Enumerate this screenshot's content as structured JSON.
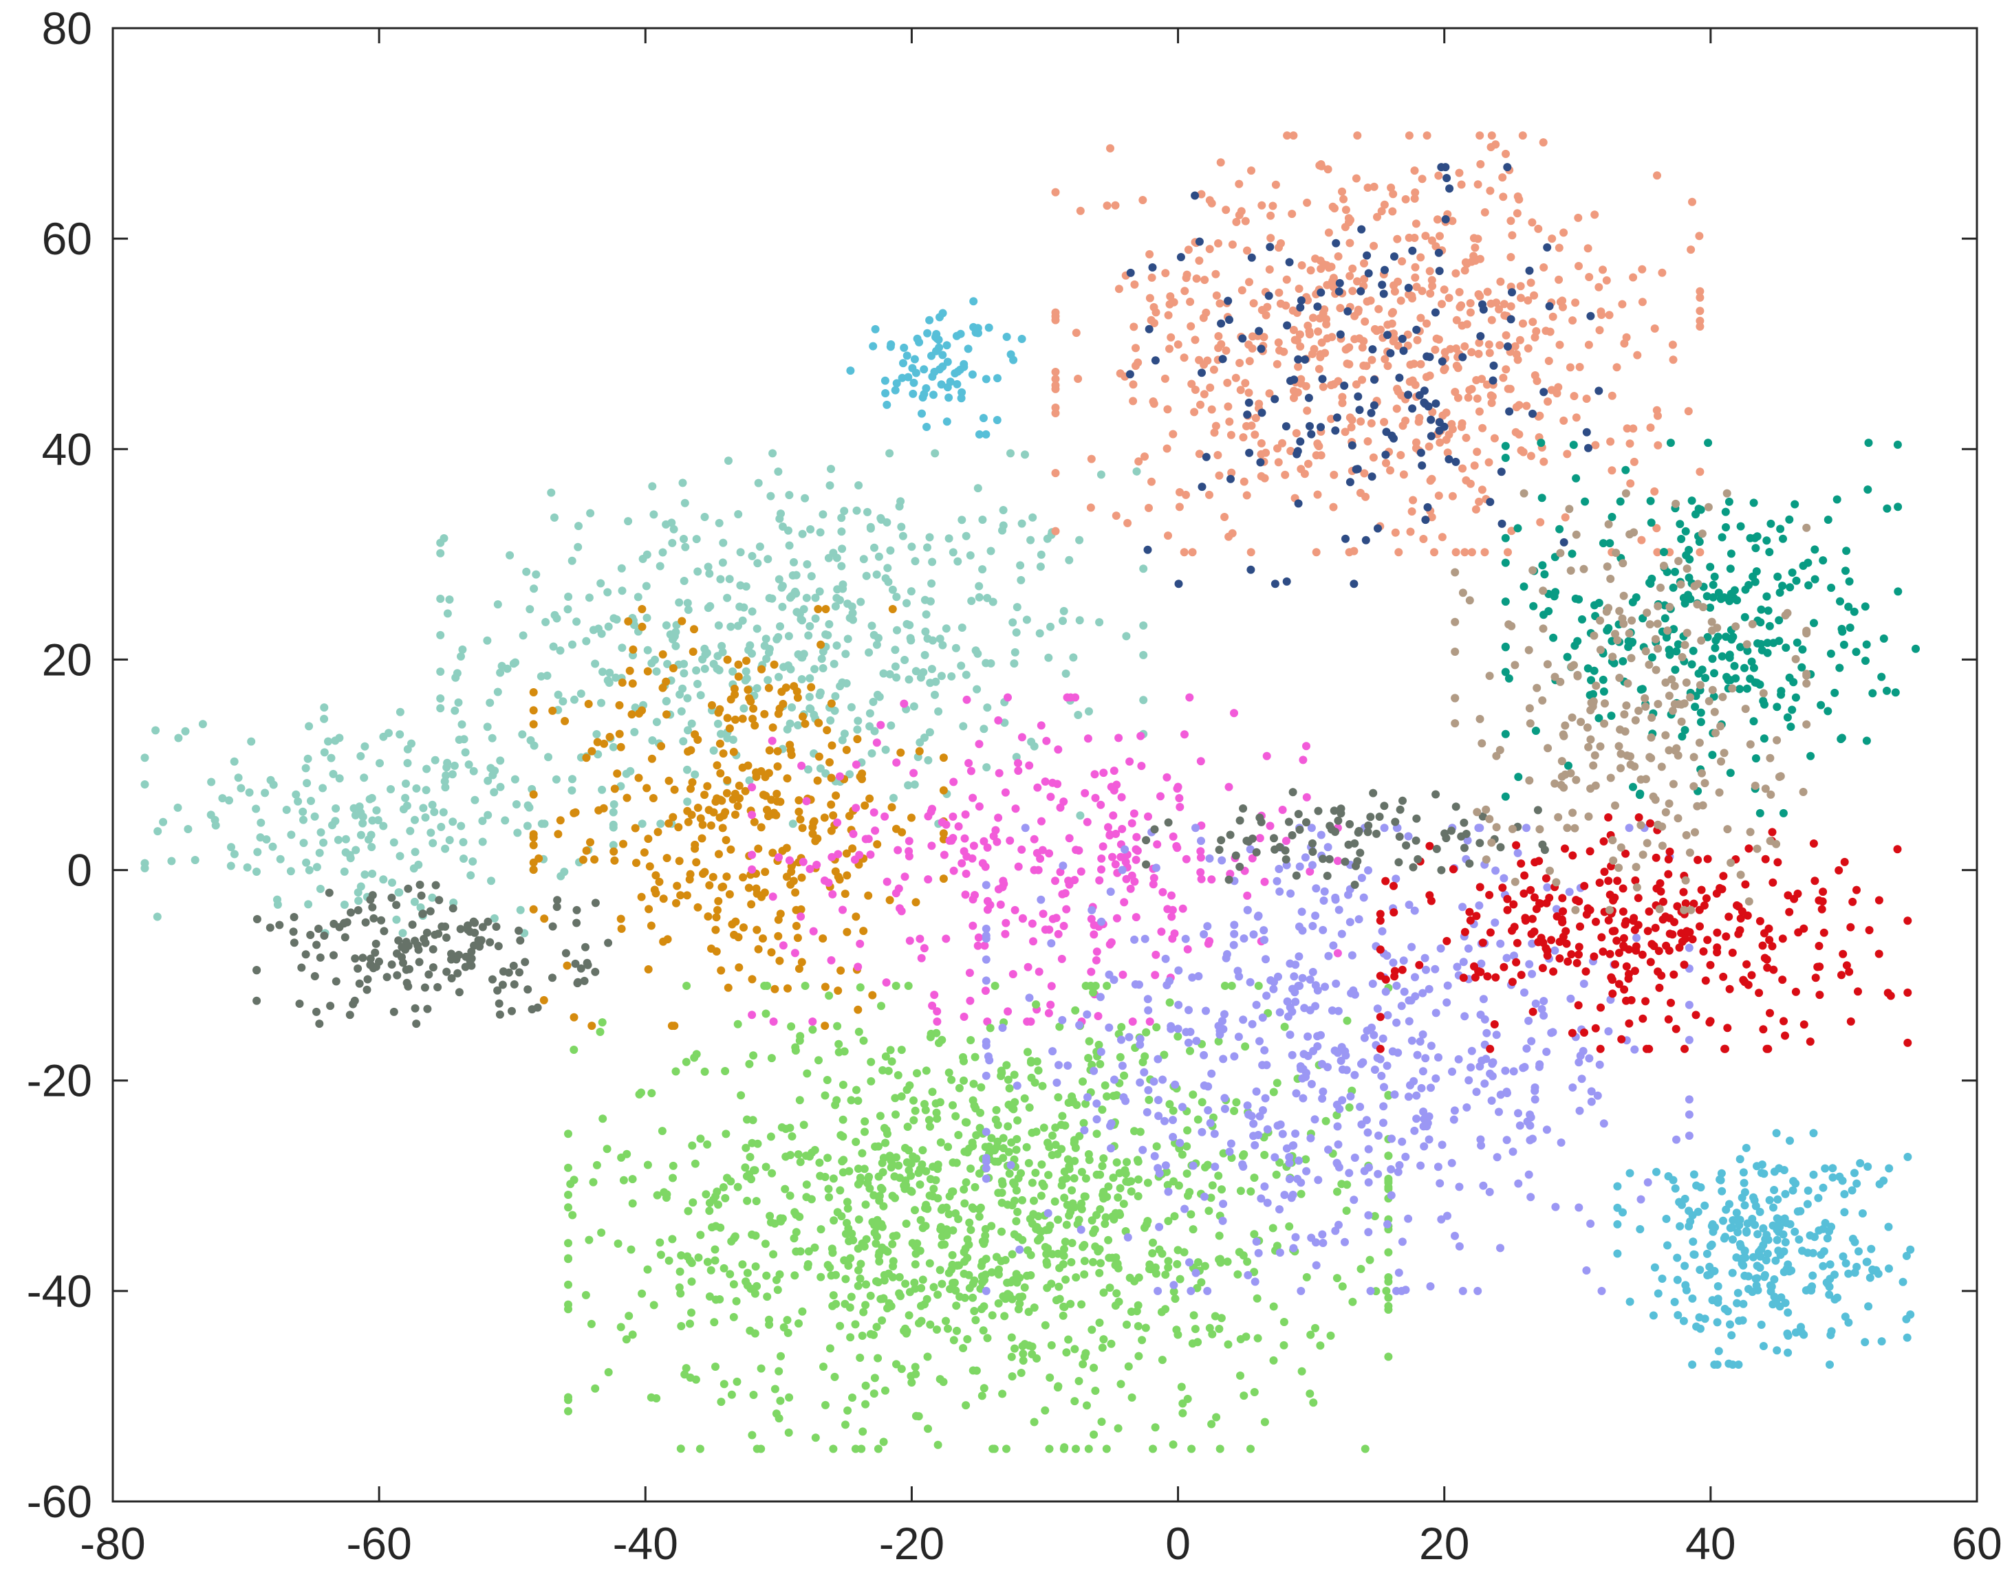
{
  "chart_data": {
    "type": "scatter",
    "title": "",
    "xlabel": "",
    "ylabel": "",
    "xlim": [
      -80,
      60
    ],
    "ylim": [
      -60,
      80
    ],
    "grid": false,
    "legend": "none",
    "x_ticks": [
      "-80",
      "-60",
      "-40",
      "-20",
      "0",
      "20",
      "40",
      "60"
    ],
    "y_ticks": [
      "-60",
      "-40",
      "-20",
      "0",
      "20",
      "40",
      "60",
      "80"
    ],
    "clusters": [
      {
        "color": "#8ecfc0",
        "center": [
          -29,
          22
        ],
        "spread": [
          12,
          8
        ],
        "count": 520
      },
      {
        "color": "#8ecfc0",
        "center": [
          -60,
          5
        ],
        "spread": [
          8,
          5
        ],
        "count": 220
      },
      {
        "color": "#d58b0e",
        "center": [
          -33,
          5
        ],
        "spread": [
          7,
          9
        ],
        "count": 360
      },
      {
        "color": "#f25bd9",
        "center": [
          -10,
          1
        ],
        "spread": [
          10,
          7
        ],
        "count": 320
      },
      {
        "color": "#7ed764",
        "center": [
          -15,
          -33
        ],
        "spread": [
          14,
          10
        ],
        "count": 1250
      },
      {
        "color": "#9b97f4",
        "center": [
          12,
          -18
        ],
        "spread": [
          12,
          10
        ],
        "count": 620
      },
      {
        "color": "#d90c14",
        "center": [
          35,
          -6
        ],
        "spread": [
          9,
          5
        ],
        "count": 330
      },
      {
        "color": "#667268",
        "center": [
          -56,
          -8
        ],
        "spread": [
          6,
          3
        ],
        "count": 170
      },
      {
        "color": "#667268",
        "center": [
          13,
          3
        ],
        "spread": [
          7,
          2
        ],
        "count": 90
      },
      {
        "color": "#ef9a7e",
        "center": [
          15,
          50
        ],
        "spread": [
          11,
          9
        ],
        "count": 700
      },
      {
        "color": "#2e4c85",
        "center": [
          14,
          47
        ],
        "spread": [
          8,
          9
        ],
        "count": 150
      },
      {
        "color": "#089b83",
        "center": [
          40,
          23
        ],
        "spread": [
          7,
          8
        ],
        "count": 320
      },
      {
        "color": "#b19b85",
        "center": [
          34,
          16
        ],
        "spread": [
          6,
          9
        ],
        "count": 260
      },
      {
        "color": "#57bfd8",
        "center": [
          44,
          -36
        ],
        "spread": [
          5,
          5
        ],
        "count": 300
      },
      {
        "color": "#57bfd8",
        "center": [
          -18,
          48
        ],
        "spread": [
          3,
          3
        ],
        "count": 80
      }
    ]
  }
}
